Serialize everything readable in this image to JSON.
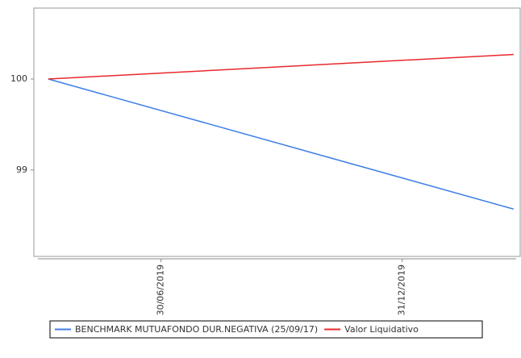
{
  "chart_data": {
    "type": "line",
    "x": [
      "2019-04-05",
      "2020-03-25"
    ],
    "series": [
      {
        "name": "BENCHMARK MUTUAFONDO DUR.NEGATIVA (25/09/17)",
        "color": "#3f7fe8",
        "values": [
          100,
          98.57
        ]
      },
      {
        "name": "Valor Liquidativo",
        "color": "#e8282e",
        "values": [
          100,
          100.27
        ]
      }
    ],
    "xlim": [
      "2019-03-25",
      "2020-03-30"
    ],
    "xticks": [
      {
        "value": "2019-06-30",
        "label": "30/06/2019"
      },
      {
        "value": "2019-12-31",
        "label": "31/12/2019"
      }
    ],
    "ylim": [
      98.05,
      100.78
    ],
    "yticks": [
      99,
      100
    ],
    "legend": "bottom"
  }
}
